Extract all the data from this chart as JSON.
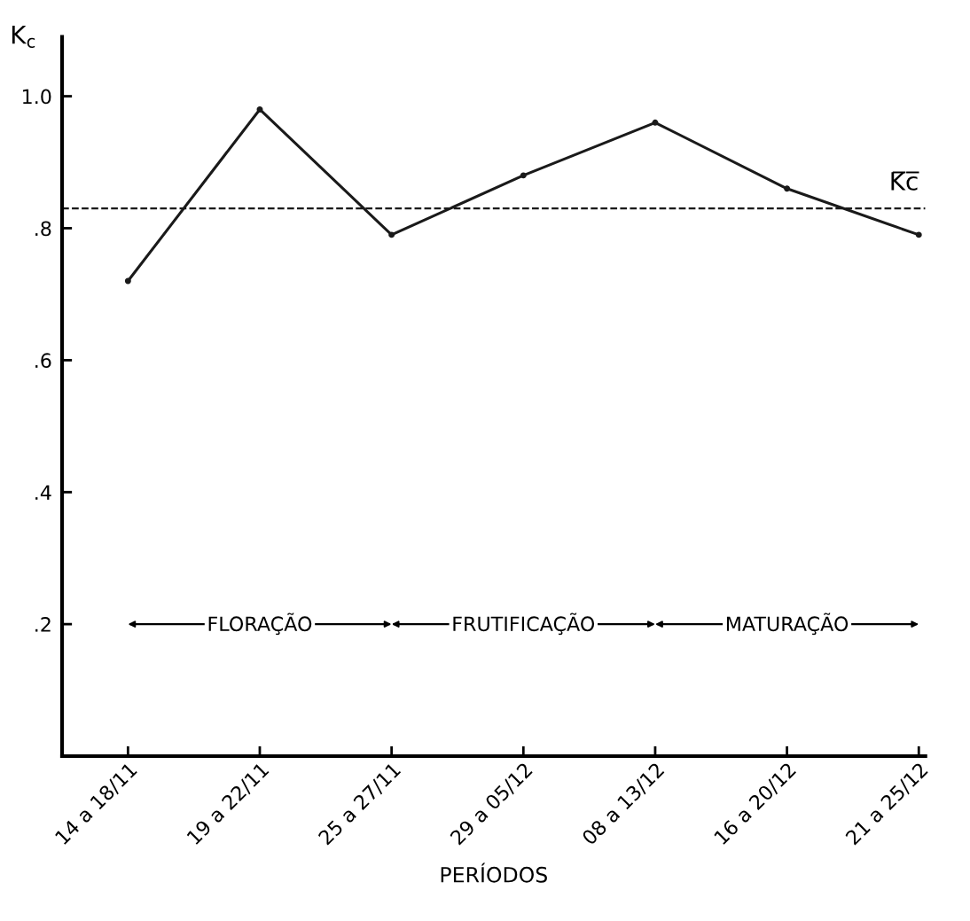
{
  "chart_data": {
    "type": "line",
    "ylabel": "K$_{c}$",
    "xlabel": "PERÍODOS",
    "categories": [
      "14 a 18/11",
      "19 a 22/11",
      "25 a 27/11",
      "29 a 05/12",
      "08 a 13/12",
      "16 a 20/12",
      "21 a 25/12"
    ],
    "series": [
      {
        "color": "#1a1a1a",
        "values": [
          0.72,
          0.98,
          0.79,
          0.88,
          0.96,
          0.86,
          0.79
        ]
      }
    ],
    "marker": "circle",
    "line_style": "solid",
    "ylim": [
      0,
      1.09
    ],
    "yticks": [
      {
        "value": 0.2,
        "label": ".2"
      },
      {
        "value": 0.4,
        "label": ".4"
      },
      {
        "value": 0.6,
        "label": ".6"
      },
      {
        "value": 0.8,
        "label": ".8"
      },
      {
        "value": 1.0,
        "label": "1.0"
      }
    ],
    "ref_lines": [
      {
        "axis": "y",
        "value": 0.83,
        "label": "K̅c̅",
        "color": "#1a1a1a",
        "line_style": "dashed"
      }
    ],
    "annotations": [
      "FLORAÇÃO",
      "FRUTIFICAÇÃO",
      "MATURAÇÃO"
    ],
    "grid": false,
    "legend": false
  }
}
